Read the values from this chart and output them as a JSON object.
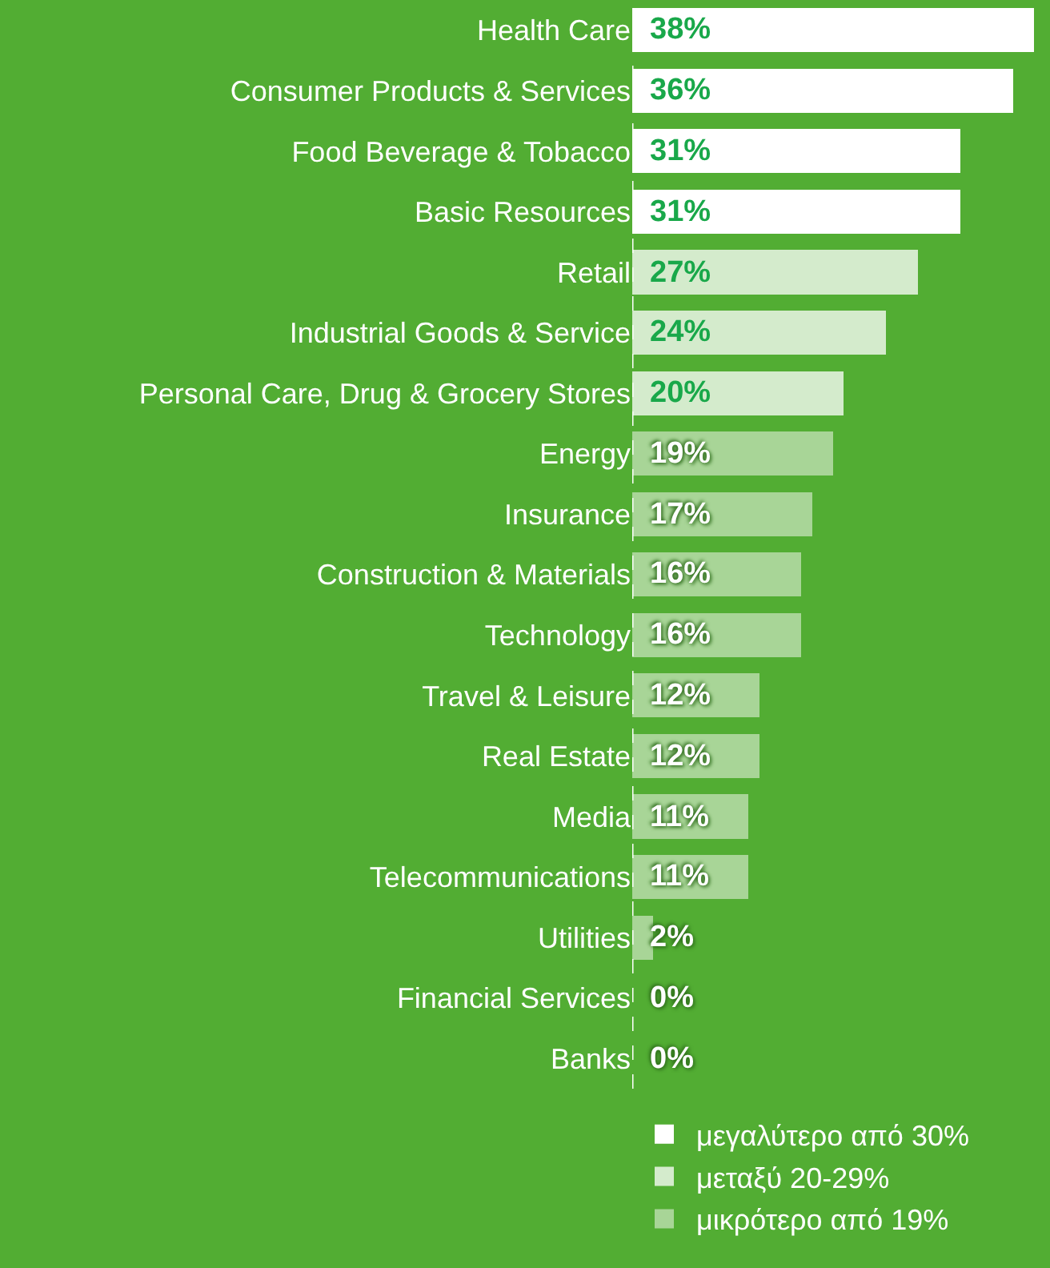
{
  "chart_data": {
    "type": "bar",
    "orientation": "horizontal",
    "stacked": true,
    "categories": [
      "Health Care",
      "Consumer Products & Services",
      "Food Beverage & Tobacco",
      "Basic Resources",
      "Retail",
      "Industrial Goods & Service",
      "Personal Care, Drug & Grocery Stores",
      "Energy",
      "Insurance",
      "Construction & Materials",
      "Technology",
      "Travel & Leisure",
      "Real Estate",
      "Media",
      "Telecommunications",
      "Utilities",
      "Financial Services",
      "Banks"
    ],
    "series": [
      {
        "name": "μεγαλύτερο από 30%",
        "color": "#ffffff",
        "values": [
          38,
          36,
          31,
          31,
          null,
          null,
          null,
          null,
          null,
          null,
          null,
          null,
          null,
          null,
          null,
          null,
          null,
          null
        ],
        "value_labels": [
          "38%",
          "36%",
          "31%",
          "31%",
          null,
          null,
          null,
          null,
          null,
          null,
          null,
          null,
          null,
          null,
          null,
          null,
          null,
          null
        ]
      },
      {
        "name": "μεταξύ 20-29%",
        "color": "#d4ebcc",
        "values": [
          null,
          null,
          null,
          null,
          27,
          24,
          20,
          null,
          null,
          null,
          null,
          null,
          null,
          null,
          null,
          null,
          null,
          null
        ],
        "value_labels": [
          null,
          null,
          null,
          null,
          "27%",
          "24%",
          "20%",
          null,
          null,
          null,
          null,
          null,
          null,
          null,
          null,
          null,
          null,
          null
        ]
      },
      {
        "name": "μικρότερο από 19%",
        "color": "#a8d597",
        "values": [
          null,
          null,
          null,
          null,
          null,
          null,
          null,
          19,
          17,
          16,
          16,
          12,
          12,
          11,
          11,
          2,
          0,
          0
        ],
        "value_labels": [
          null,
          null,
          null,
          null,
          null,
          null,
          null,
          "19%",
          "17%",
          "16%",
          "16%",
          "12%",
          "12%",
          "11%",
          "11%",
          "2%",
          "0%",
          "0%"
        ]
      }
    ],
    "xlim": [
      0,
      39.5
    ],
    "tick_labels": "y",
    "legend": "bottom"
  }
}
